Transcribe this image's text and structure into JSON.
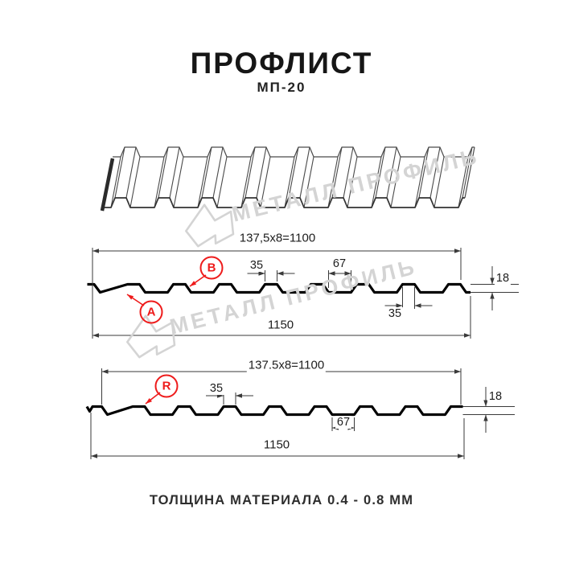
{
  "title": "ПРОФЛИСТ",
  "subtitle": "МП-20",
  "caption": "ТОЛЩИНА МАТЕРИАЛА 0.4 - 0.8 ММ",
  "watermark": {
    "text": "МЕТАЛЛ ПРОФИЛЬ",
    "logo": "metall-profil-logo"
  },
  "colors": {
    "accent_red": "#ee1b1b",
    "drawing_line": "#3a3a3a",
    "profile_line": "#000000",
    "watermark_gray": "#d4d4d4"
  },
  "drawing_top": {
    "dim_working_width": "137,5x8=1100",
    "dim_crest_width": "35",
    "dim_valley_width": "67",
    "dim_height": "18",
    "dim_crest_width_2": "35",
    "dim_full_width": "1150",
    "label_side_a": "A",
    "label_side_b": "B"
  },
  "drawing_bottom": {
    "dim_working_width": "137.5x8=1100",
    "dim_crest_width": "35",
    "dim_valley_width": "67",
    "dim_height": "18",
    "dim_full_width": "1150",
    "label_side_r": "R"
  }
}
